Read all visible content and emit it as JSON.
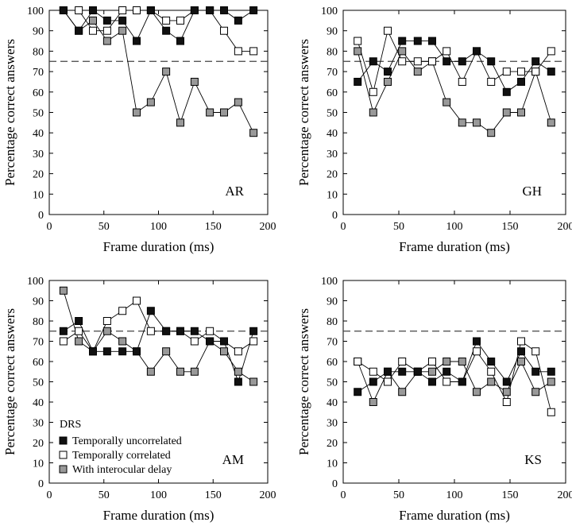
{
  "colors": {
    "uncorrelated": "#111111",
    "correlated": "#ffffff",
    "interocular": "#999999",
    "line": "#000000",
    "reference": "#444444"
  },
  "legend": {
    "title": "DRS",
    "items": [
      {
        "key": "uncorrelated",
        "label": "Temporally uncorrelated"
      },
      {
        "key": "correlated",
        "label": "Temporally correlated"
      },
      {
        "key": "interocular",
        "label": "With interocular delay"
      }
    ]
  },
  "chart_data": [
    {
      "type": "line",
      "panel_label": "AR",
      "xlabel": "Frame duration (ms)",
      "ylabel": "Percentage correct answers",
      "xlim": [
        0,
        200
      ],
      "ylim": [
        0,
        100
      ],
      "xticks": [
        0,
        50,
        100,
        150,
        200
      ],
      "yticks": [
        0,
        10,
        20,
        30,
        40,
        50,
        60,
        70,
        80,
        90,
        100
      ],
      "reference_line": 75,
      "x": [
        13,
        27,
        40,
        53,
        67,
        80,
        93,
        107,
        120,
        133,
        147,
        160,
        173,
        187
      ],
      "series": [
        {
          "key": "uncorrelated",
          "values": [
            100,
            90,
            100,
            95,
            95,
            85,
            100,
            90,
            85,
            100,
            100,
            100,
            95,
            100
          ]
        },
        {
          "key": "correlated",
          "values": [
            100,
            100,
            90,
            90,
            100,
            100,
            100,
            95,
            95,
            100,
            100,
            90,
            80,
            80
          ]
        },
        {
          "key": "interocular",
          "values": [
            100,
            90,
            95,
            85,
            90,
            50,
            55,
            70,
            45,
            65,
            50,
            50,
            55,
            40
          ]
        }
      ]
    },
    {
      "type": "line",
      "panel_label": "GH",
      "xlabel": "Frame duration (ms)",
      "ylabel": "Percentage correct answers",
      "xlim": [
        0,
        200
      ],
      "ylim": [
        0,
        100
      ],
      "xticks": [
        0,
        50,
        100,
        150,
        200
      ],
      "yticks": [
        0,
        10,
        20,
        30,
        40,
        50,
        60,
        70,
        80,
        90,
        100
      ],
      "reference_line": 75,
      "x": [
        13,
        27,
        40,
        53,
        67,
        80,
        93,
        107,
        120,
        133,
        147,
        160,
        173,
        187
      ],
      "series": [
        {
          "key": "uncorrelated",
          "values": [
            65,
            75,
            70,
            85,
            85,
            85,
            75,
            75,
            80,
            75,
            60,
            65,
            75,
            70
          ]
        },
        {
          "key": "correlated",
          "values": [
            85,
            60,
            90,
            75,
            75,
            75,
            80,
            65,
            80,
            65,
            70,
            70,
            70,
            80
          ]
        },
        {
          "key": "interocular",
          "values": [
            80,
            50,
            65,
            80,
            70,
            75,
            55,
            45,
            45,
            40,
            50,
            50,
            70,
            45
          ]
        }
      ]
    },
    {
      "type": "line",
      "panel_label": "AM",
      "xlabel": "Frame duration (ms)",
      "ylabel": "Percentage correct answers",
      "xlim": [
        0,
        200
      ],
      "ylim": [
        0,
        100
      ],
      "xticks": [
        0,
        50,
        100,
        150,
        200
      ],
      "yticks": [
        0,
        10,
        20,
        30,
        40,
        50,
        60,
        70,
        80,
        90,
        100
      ],
      "reference_line": 75,
      "x": [
        13,
        27,
        40,
        53,
        67,
        80,
        93,
        107,
        120,
        133,
        147,
        160,
        173,
        187
      ],
      "series": [
        {
          "key": "uncorrelated",
          "values": [
            75,
            80,
            65,
            65,
            65,
            65,
            85,
            75,
            75,
            75,
            70,
            70,
            50,
            75
          ]
        },
        {
          "key": "correlated",
          "values": [
            70,
            75,
            65,
            80,
            85,
            90,
            75,
            75,
            75,
            70,
            75,
            70,
            65,
            70
          ]
        },
        {
          "key": "interocular",
          "values": [
            95,
            70,
            65,
            75,
            70,
            65,
            55,
            65,
            55,
            55,
            70,
            65,
            55,
            50
          ]
        }
      ]
    },
    {
      "type": "line",
      "panel_label": "KS",
      "xlabel": "Frame duration (ms)",
      "ylabel": "Percentage correct answers",
      "xlim": [
        0,
        200
      ],
      "ylim": [
        0,
        100
      ],
      "xticks": [
        0,
        50,
        100,
        150,
        200
      ],
      "yticks": [
        0,
        10,
        20,
        30,
        40,
        50,
        60,
        70,
        80,
        90,
        100
      ],
      "reference_line": 75,
      "x": [
        13,
        27,
        40,
        53,
        67,
        80,
        93,
        107,
        120,
        133,
        147,
        160,
        173,
        187
      ],
      "series": [
        {
          "key": "uncorrelated",
          "values": [
            45,
            50,
            55,
            55,
            55,
            50,
            55,
            50,
            70,
            60,
            50,
            65,
            55,
            55
          ]
        },
        {
          "key": "correlated",
          "values": [
            60,
            55,
            50,
            60,
            55,
            60,
            50,
            50,
            65,
            55,
            40,
            70,
            65,
            35
          ]
        },
        {
          "key": "interocular",
          "values": [
            60,
            40,
            55,
            45,
            55,
            55,
            60,
            60,
            45,
            50,
            45,
            60,
            45,
            50
          ]
        }
      ]
    }
  ]
}
